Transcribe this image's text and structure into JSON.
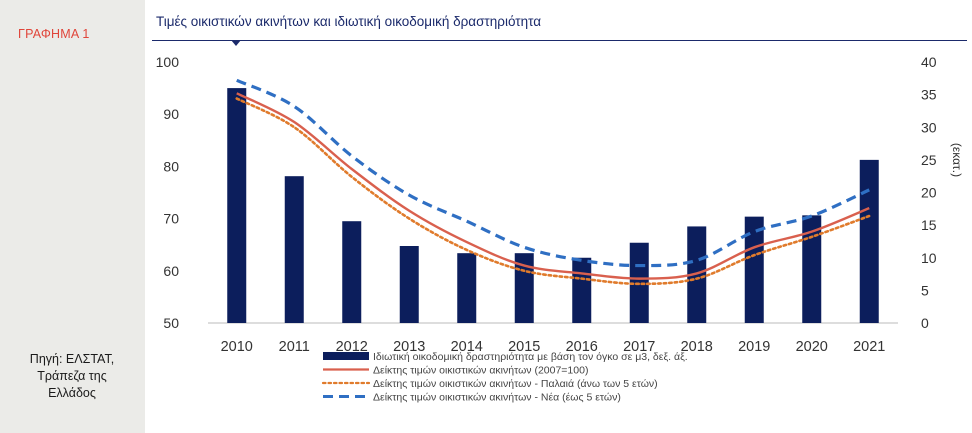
{
  "figure_label": "ΓΡΑΦΗΜΑ 1",
  "source_lines": [
    "Πηγή: ΕΛΣΤΑΤ,",
    "Τράπεζα της",
    "Ελλάδος"
  ],
  "colors": {
    "bar": "#0c1e5c",
    "line_total": "#d9604e",
    "line_old": "#e07b2c",
    "line_new": "#2f6fc3",
    "accent": "#e0453a",
    "title": "#1b2a6b"
  },
  "chart_data": {
    "type": "bar+line",
    "title": "Τιμές οικιστικών ακινήτων και ιδιωτική οικοδομική δραστηριότητα",
    "categories": [
      "2010",
      "2011",
      "2012",
      "2013",
      "2014",
      "2015",
      "2016",
      "2017",
      "2018",
      "2019",
      "2020",
      "2021"
    ],
    "y_left": {
      "lim": [
        50,
        100
      ],
      "ticks": [
        50,
        60,
        70,
        80,
        90,
        100
      ]
    },
    "y_right": {
      "lim": [
        0,
        40
      ],
      "ticks": [
        0,
        5,
        10,
        15,
        20,
        25,
        30,
        35,
        40
      ],
      "label": "(εκατ.)"
    },
    "series": [
      {
        "name": "Ιδιωτική οικοδομική δραστηριότητα με βάση τον όγκο σε μ3, δεξ. άξ.",
        "type": "bar",
        "axis": "right",
        "values": [
          36.0,
          22.5,
          15.6,
          11.8,
          10.7,
          10.7,
          10.0,
          12.3,
          14.8,
          16.3,
          16.5,
          25.0
        ]
      },
      {
        "name": "Δείκτης τιμών οικιστικών ακινήτων (2007=100)",
        "type": "line",
        "style": "solid",
        "axis": "left",
        "values": [
          94.0,
          88.5,
          79.5,
          71.5,
          65.5,
          61.0,
          59.5,
          58.5,
          59.5,
          64.5,
          67.5,
          72.0
        ]
      },
      {
        "name": "Δείκτης τιμών οικιστικών ακινήτων - Παλαιά (άνω των 5 ετών)",
        "type": "line",
        "style": "dotted",
        "axis": "left",
        "values": [
          93.0,
          87.5,
          78.0,
          70.0,
          64.0,
          60.0,
          58.5,
          57.5,
          58.5,
          63.0,
          66.5,
          70.5
        ]
      },
      {
        "name": "Δείκτης τιμών οικιστικών ακινήτων - Νέα (έως 5 ετών)",
        "type": "line",
        "style": "dashed",
        "axis": "left",
        "values": [
          96.5,
          91.5,
          82.0,
          74.5,
          69.5,
          64.5,
          62.0,
          61.0,
          62.0,
          67.5,
          70.5,
          75.5
        ]
      }
    ]
  }
}
